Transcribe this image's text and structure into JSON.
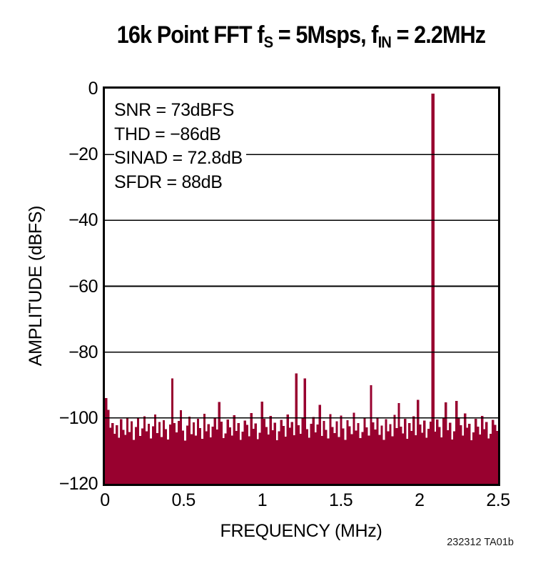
{
  "title": {
    "segments": [
      {
        "text": "16k Point FFT f"
      },
      {
        "text": "S",
        "sub": true
      },
      {
        "text": " = 5Msps, f"
      },
      {
        "text": "IN",
        "sub": true
      },
      {
        "text": " = 2.2MHz"
      }
    ]
  },
  "annotations": {
    "lines": [
      "SNR = 73dBFS",
      "THD = −86dB",
      "SINAD = 72.8dB",
      "SFDR = 88dB"
    ]
  },
  "footer": {
    "code": "232312 TA01b"
  },
  "chart_data": {
    "type": "bar",
    "title": "16k Point FFT fS = 5Msps, fIN = 2.2MHz",
    "xlabel": "FREQUENCY (MHz)",
    "ylabel": "AMPLITUDE (dBFS)",
    "xlim": [
      0,
      2.5
    ],
    "ylim": [
      -120,
      0
    ],
    "x_ticks": [
      0,
      0.5,
      1,
      1.5,
      2,
      2.5
    ],
    "x_tick_labels": [
      "0",
      "0.5",
      "1",
      "1.5",
      "2",
      "2.5"
    ],
    "y_ticks": [
      0,
      -20,
      -40,
      -60,
      -80,
      -100,
      -120
    ],
    "y_tick_labels": [
      "0",
      "−20",
      "−40",
      "−60",
      "−80",
      "−100",
      "−120"
    ],
    "gridlines_y": [
      -20,
      -40,
      -60,
      -80,
      -100
    ],
    "grid": "horizontal-only",
    "legend": "none",
    "series_color": "#98012F",
    "axis_color": "#000000",
    "stats": {
      "snr_dbfs": 73,
      "thd_db": -86,
      "sinad_db": 72.8,
      "sfdr_db": 88
    },
    "main_tone": {
      "freq_mhz": 2.2,
      "amplitude_dbfs": -1.5
    },
    "notable_spurs_mhz_db": [
      [
        0.42,
        -88
      ],
      [
        0.48,
        -97.6
      ],
      [
        0.73,
        -95.2
      ],
      [
        1.0,
        -95
      ],
      [
        1.22,
        -86.5
      ],
      [
        1.27,
        -88
      ],
      [
        1.37,
        -96
      ],
      [
        1.69,
        -90
      ],
      [
        1.87,
        -95.5
      ],
      [
        1.99,
        -94.5
      ],
      [
        2.17,
        -95.3
      ],
      [
        2.24,
        -94.8
      ]
    ],
    "bins_span_mhz": [
      0,
      2.5
    ],
    "amplitudes_dbfs": [
      -94.0,
      -97.5,
      -103.0,
      -101.5,
      -104.8,
      -102.2,
      -106.0,
      -100.4,
      -103.6,
      -105.1,
      -99.8,
      -104.3,
      -101.0,
      -106.7,
      -102.8,
      -100.1,
      -105.5,
      -103.2,
      -99.5,
      -104.0,
      -101.8,
      -106.2,
      -102.5,
      -98.9,
      -104.6,
      -101.2,
      -105.8,
      -100.7,
      -103.4,
      -106.5,
      -102.0,
      -88.0,
      -101.6,
      -104.4,
      -100.9,
      -97.6,
      -103.8,
      -106.9,
      -102.3,
      -99.6,
      -104.9,
      -101.3,
      -105.4,
      -100.2,
      -103.1,
      -106.3,
      -98.7,
      -104.1,
      -101.9,
      -105.9,
      -102.6,
      -99.9,
      -103.5,
      -95.2,
      -101.1,
      -106.1,
      -104.7,
      -100.5,
      -102.9,
      -105.3,
      -99.2,
      -103.9,
      -101.5,
      -106.6,
      -104.2,
      -100.8,
      -102.1,
      -105.6,
      -98.5,
      -103.3,
      -101.7,
      -106.4,
      -104.5,
      -95.0,
      -100.3,
      -102.7,
      -105.0,
      -99.4,
      -103.7,
      -101.4,
      -106.8,
      -104.0,
      -100.6,
      -102.4,
      -105.7,
      -99.0,
      -103.0,
      -101.2,
      -105.2,
      -86.5,
      -102.2,
      -104.8,
      -100.0,
      -88.0,
      -103.4,
      -106.0,
      -101.8,
      -99.7,
      -104.4,
      -102.0,
      -96.0,
      -105.5,
      -100.9,
      -103.6,
      -106.2,
      -98.8,
      -102.8,
      -104.6,
      -101.0,
      -105.8,
      -99.3,
      -103.2,
      -106.6,
      -100.7,
      -102.5,
      -104.9,
      -98.4,
      -103.8,
      -101.6,
      -106.1,
      -104.3,
      -100.1,
      -102.9,
      -105.4,
      -90.0,
      -101.3,
      -103.5,
      -99.8,
      -105.1,
      -102.3,
      -106.7,
      -100.4,
      -104.0,
      -101.9,
      -105.6,
      -99.1,
      -103.1,
      -95.5,
      -102.6,
      -104.7,
      -100.2,
      -106.3,
      -101.5,
      -103.9,
      -99.5,
      -105.2,
      -94.5,
      -102.0,
      -104.5,
      -100.8,
      -106.0,
      -103.3,
      -101.1,
      -1.5,
      -104.2,
      -100.5,
      -102.7,
      -105.9,
      -99.9,
      -95.3,
      -103.7,
      -101.4,
      -106.5,
      -104.1,
      -94.8,
      -100.0,
      -102.2,
      -105.3,
      -98.6,
      -103.0,
      -101.8,
      -106.8,
      -104.4,
      -100.3,
      -102.6,
      -105.0,
      -99.4,
      -103.4,
      -101.2,
      -106.2,
      -104.8,
      -100.6,
      -102.1,
      -103.9
    ]
  }
}
